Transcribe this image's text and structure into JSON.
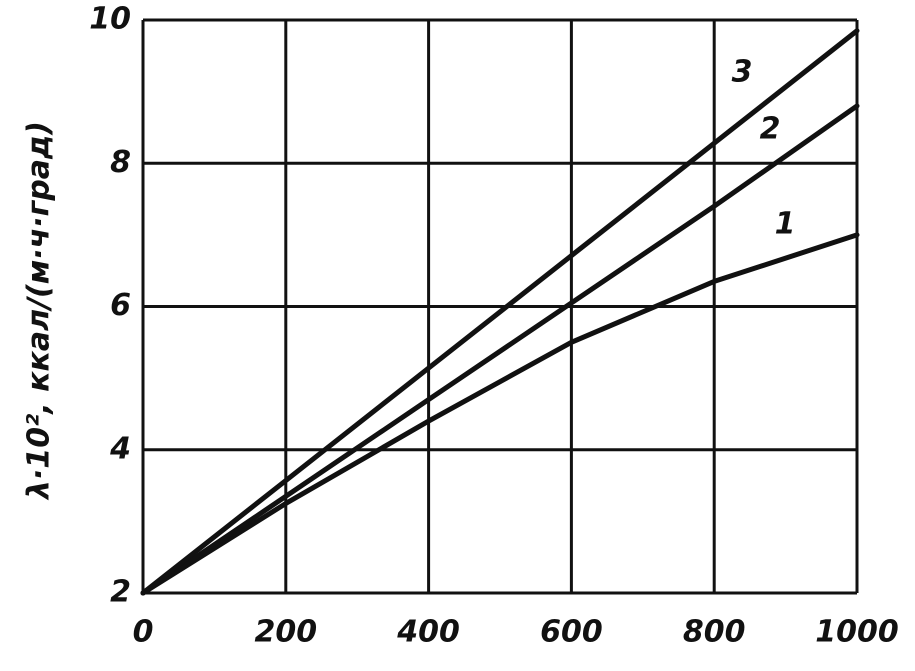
{
  "chart_data": {
    "type": "line",
    "y_label": "λ·10², ккал/(м·ч·град)",
    "x": [
      0,
      200,
      400,
      600,
      800,
      1000
    ],
    "series": [
      {
        "name": "1",
        "color": "#111111",
        "values": [
          2,
          3.25,
          4.4,
          5.5,
          6.35,
          7.0
        ]
      },
      {
        "name": "2",
        "color": "#111111",
        "values": [
          2,
          3.35,
          4.7,
          6.05,
          7.4,
          8.8
        ]
      },
      {
        "name": "3",
        "color": "#111111",
        "values": [
          2,
          3.57,
          5.14,
          6.71,
          8.28,
          9.85
        ]
      }
    ],
    "xlim": [
      0,
      1000
    ],
    "ylim": [
      2,
      10
    ],
    "xticks": [
      0,
      200,
      400,
      600,
      800,
      1000
    ],
    "yticks": [
      2,
      4,
      6,
      8,
      10
    ],
    "grid": true
  }
}
